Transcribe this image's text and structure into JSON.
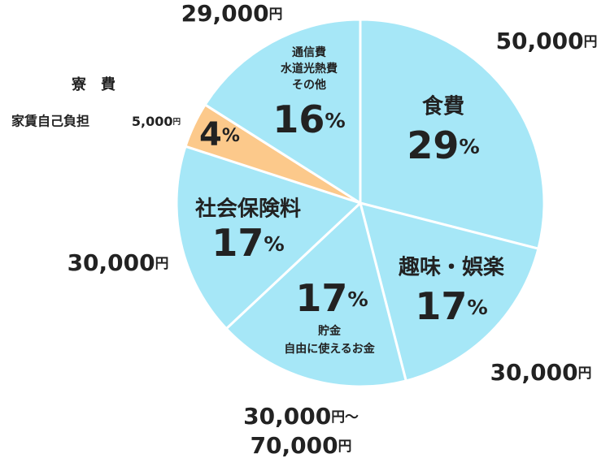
{
  "chart_data": {
    "type": "pie",
    "categories": [
      [
        "食費"
      ],
      [
        "趣味・娯楽"
      ],
      [
        "貯金",
        "自由に使えるお金"
      ],
      [
        "社会保険料"
      ],
      [
        "寮　費"
      ],
      [
        "通信費",
        "水道光熱費",
        "その他"
      ]
    ],
    "values": [
      29,
      17,
      17,
      17,
      4,
      16
    ],
    "value_labels": [
      "29%",
      "17%",
      "17%",
      "17%",
      "4%",
      "16%"
    ],
    "colors": [
      "#a6e7f7",
      "#a6e7f7",
      "#a6e7f7",
      "#a6e7f7",
      "#fcc98b",
      "#a6e7f7"
    ],
    "amounts": [
      [
        "50,000円"
      ],
      [
        "30,000円"
      ],
      [
        "30,000円～",
        "70,000円"
      ],
      [
        "30,000円"
      ],
      [
        "5,000円"
      ],
      [
        "29,000円"
      ]
    ],
    "annotations": [
      "家賃自己負担"
    ]
  }
}
